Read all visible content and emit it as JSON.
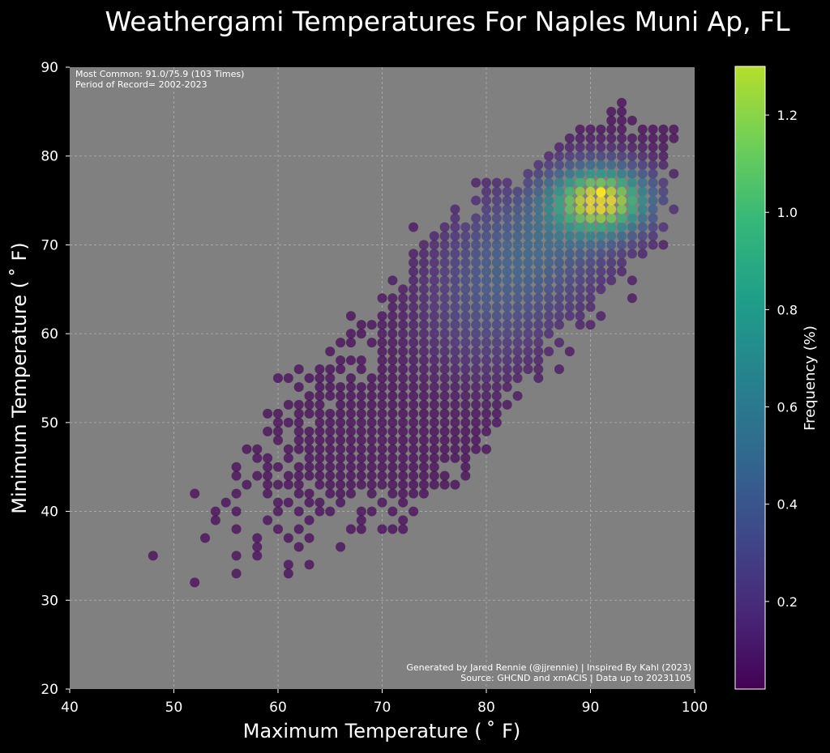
{
  "chart_data": {
    "type": "scatter",
    "title": "Weathergami Temperatures For Naples Muni Ap, FL",
    "xlabel": "Maximum Temperature ($^\\circ$F)",
    "xlabel_display": "Maximum Temperature ( ˚ F)",
    "ylabel_display": "Minimum Temperature ( ˚ F)",
    "xlim": [
      40,
      100
    ],
    "ylim": [
      20,
      90
    ],
    "x_ticks": [
      40,
      50,
      60,
      70,
      80,
      90,
      100
    ],
    "y_ticks": [
      20,
      30,
      40,
      50,
      60,
      70,
      80,
      90
    ],
    "grid": true,
    "plot_background": "#808080",
    "figure_background": "#000000",
    "colormap": "viridis",
    "colorbar": {
      "label": "Frequency (%)",
      "range": [
        0.02,
        1.3
      ],
      "ticks": [
        0.2,
        0.4,
        0.6,
        0.8,
        1.0,
        1.2
      ],
      "tick_labels": [
        "0.2",
        "0.4",
        "0.6",
        "0.8",
        "1.0",
        "1.2"
      ]
    },
    "annotations": {
      "most_common": "Most Common: 91.0/75.9 (103 Times)",
      "period": "Period of Record= 2002-2023",
      "credit": "Generated by Jared Rennie (@jjrennie) | Inspired By Kahl (2023)",
      "source": "Source: GHCND and xmACIS | Data up to 20231105"
    },
    "most_common_point": {
      "x": 91.0,
      "y": 75.9,
      "count": 103
    },
    "density_centers": [
      {
        "x": 91,
        "y": 75,
        "sx": 3.2,
        "sy": 2.6,
        "peak": 1.25
      },
      {
        "x": 85,
        "y": 70,
        "sx": 5.0,
        "sy": 5.0,
        "peak": 0.32
      },
      {
        "x": 80,
        "y": 63,
        "sx": 4.5,
        "sy": 5.5,
        "peak": 0.2
      }
    ],
    "rows": [
      {
        "y": 86,
        "x": [
          93
        ]
      },
      {
        "y": 85,
        "x": [
          92,
          93
        ]
      },
      {
        "y": 84,
        "x": [
          92,
          93,
          94
        ]
      },
      {
        "y": 83,
        "x": [
          89,
          90,
          91,
          92,
          93,
          95,
          96,
          97,
          98
        ]
      },
      {
        "y": 82,
        "x": [
          88,
          89,
          90,
          91,
          92,
          93,
          94,
          95,
          96,
          97,
          98
        ]
      },
      {
        "y": 81,
        "x": [
          87,
          88,
          89,
          90,
          91,
          92,
          93,
          94,
          95,
          96,
          97
        ]
      },
      {
        "y": 80,
        "x": [
          86,
          87,
          88,
          89,
          90,
          91,
          92,
          93,
          94,
          95,
          96,
          97
        ]
      },
      {
        "y": 79,
        "x": [
          85,
          86,
          87,
          88,
          89,
          90,
          91,
          92,
          93,
          94,
          95,
          96,
          97
        ]
      },
      {
        "y": 78,
        "x": [
          84,
          85,
          86,
          87,
          88,
          89,
          90,
          91,
          92,
          93,
          94,
          95,
          96,
          98
        ]
      },
      {
        "y": 77,
        "x": [
          79,
          80,
          81,
          82,
          84,
          85,
          86,
          87,
          88,
          89,
          90,
          91,
          92,
          93,
          94,
          95,
          96,
          97
        ]
      },
      {
        "y": 76,
        "x": [
          80,
          81,
          82,
          83,
          84,
          85,
          86,
          87,
          88,
          89,
          90,
          91,
          92,
          93,
          94,
          95,
          96,
          97
        ]
      },
      {
        "y": 75,
        "x": [
          79,
          80,
          81,
          82,
          83,
          84,
          85,
          86,
          87,
          88,
          89,
          90,
          91,
          92,
          93,
          94,
          95,
          96,
          97
        ]
      },
      {
        "y": 74,
        "x": [
          77,
          80,
          81,
          82,
          83,
          84,
          85,
          86,
          87,
          88,
          89,
          90,
          91,
          92,
          93,
          94,
          95,
          96,
          98
        ]
      },
      {
        "y": 73,
        "x": [
          77,
          79,
          80,
          81,
          82,
          83,
          84,
          85,
          86,
          87,
          88,
          89,
          90,
          91,
          92,
          93,
          94,
          95,
          96
        ]
      },
      {
        "y": 72,
        "x": [
          73,
          76,
          77,
          78,
          79,
          80,
          81,
          82,
          83,
          84,
          85,
          86,
          87,
          88,
          89,
          90,
          91,
          92,
          93,
          94,
          95,
          96,
          97
        ]
      },
      {
        "y": 71,
        "x": [
          75,
          76,
          77,
          78,
          79,
          80,
          81,
          82,
          83,
          84,
          85,
          86,
          87,
          88,
          89,
          90,
          91,
          92,
          93,
          94,
          95,
          96
        ]
      },
      {
        "y": 70,
        "x": [
          74,
          75,
          76,
          77,
          78,
          79,
          80,
          81,
          82,
          83,
          84,
          85,
          86,
          87,
          88,
          89,
          90,
          91,
          92,
          93,
          94,
          95,
          96,
          97
        ]
      },
      {
        "y": 69,
        "x": [
          73,
          74,
          75,
          76,
          77,
          78,
          79,
          80,
          81,
          82,
          83,
          84,
          85,
          86,
          87,
          88,
          89,
          90,
          91,
          92,
          93,
          94,
          95
        ]
      },
      {
        "y": 68,
        "x": [
          73,
          74,
          75,
          76,
          77,
          78,
          79,
          80,
          81,
          82,
          83,
          84,
          85,
          86,
          87,
          88,
          89,
          90,
          91,
          92,
          93
        ]
      },
      {
        "y": 67,
        "x": [
          73,
          74,
          75,
          76,
          77,
          78,
          79,
          80,
          81,
          82,
          83,
          84,
          85,
          86,
          87,
          88,
          89,
          90,
          91,
          92,
          93
        ]
      },
      {
        "y": 66,
        "x": [
          71,
          73,
          74,
          75,
          76,
          77,
          78,
          79,
          80,
          81,
          82,
          83,
          84,
          85,
          86,
          87,
          88,
          89,
          90,
          91,
          92,
          94
        ]
      },
      {
        "y": 65,
        "x": [
          72,
          73,
          74,
          75,
          76,
          77,
          78,
          79,
          80,
          81,
          82,
          83,
          84,
          85,
          86,
          87,
          88,
          89,
          90,
          91
        ]
      },
      {
        "y": 64,
        "x": [
          70,
          71,
          72,
          73,
          74,
          75,
          76,
          77,
          78,
          79,
          80,
          81,
          82,
          83,
          84,
          85,
          86,
          87,
          88,
          89,
          90,
          94
        ]
      },
      {
        "y": 63,
        "x": [
          71,
          72,
          73,
          74,
          75,
          76,
          77,
          78,
          79,
          80,
          81,
          82,
          83,
          84,
          85,
          86,
          87,
          88,
          89,
          90
        ]
      },
      {
        "y": 62,
        "x": [
          67,
          70,
          71,
          72,
          73,
          74,
          75,
          76,
          77,
          78,
          79,
          80,
          81,
          82,
          83,
          84,
          85,
          86,
          87,
          88,
          89,
          91
        ]
      },
      {
        "y": 61,
        "x": [
          68,
          69,
          70,
          71,
          72,
          73,
          74,
          75,
          76,
          77,
          78,
          79,
          80,
          81,
          82,
          83,
          84,
          85,
          86,
          87,
          89,
          90
        ]
      },
      {
        "y": 60,
        "x": [
          67,
          68,
          70,
          71,
          72,
          73,
          74,
          75,
          76,
          77,
          78,
          79,
          80,
          81,
          82,
          83,
          84,
          85,
          86
        ]
      },
      {
        "y": 59,
        "x": [
          66,
          67,
          69,
          70,
          71,
          72,
          73,
          74,
          75,
          76,
          77,
          78,
          79,
          80,
          81,
          82,
          83,
          84,
          85,
          87
        ]
      },
      {
        "y": 58,
        "x": [
          65,
          70,
          71,
          72,
          73,
          74,
          75,
          76,
          77,
          78,
          79,
          80,
          81,
          82,
          83,
          84,
          85,
          86,
          88
        ]
      },
      {
        "y": 57,
        "x": [
          66,
          67,
          68,
          70,
          71,
          72,
          73,
          74,
          75,
          76,
          77,
          78,
          79,
          80,
          81,
          82,
          83,
          84,
          85
        ]
      },
      {
        "y": 56,
        "x": [
          62,
          64,
          65,
          66,
          68,
          70,
          71,
          72,
          73,
          74,
          75,
          76,
          77,
          78,
          79,
          80,
          81,
          82,
          83,
          84,
          85,
          87
        ]
      },
      {
        "y": 55,
        "x": [
          60,
          61,
          63,
          64,
          65,
          67,
          69,
          70,
          71,
          72,
          73,
          74,
          75,
          76,
          77,
          78,
          79,
          80,
          81,
          82,
          83,
          85
        ]
      },
      {
        "y": 54,
        "x": [
          62,
          64,
          65,
          66,
          67,
          68,
          69,
          70,
          71,
          72,
          73,
          74,
          75,
          76,
          77,
          78,
          79,
          80,
          81,
          82
        ]
      },
      {
        "y": 53,
        "x": [
          63,
          64,
          65,
          66,
          67,
          68,
          69,
          70,
          71,
          72,
          73,
          74,
          75,
          76,
          77,
          78,
          79,
          80,
          81,
          83
        ]
      },
      {
        "y": 52,
        "x": [
          61,
          62,
          63,
          64,
          66,
          67,
          68,
          69,
          70,
          71,
          72,
          73,
          74,
          75,
          76,
          77,
          78,
          79,
          80,
          81,
          82
        ]
      },
      {
        "y": 51,
        "x": [
          59,
          60,
          62,
          63,
          64,
          65,
          66,
          67,
          68,
          69,
          70,
          71,
          72,
          73,
          74,
          75,
          76,
          77,
          78,
          79,
          80,
          81
        ]
      },
      {
        "y": 50,
        "x": [
          60,
          61,
          62,
          64,
          65,
          66,
          67,
          68,
          69,
          70,
          71,
          72,
          73,
          74,
          75,
          76,
          77,
          78,
          79,
          80,
          81
        ]
      },
      {
        "y": 49,
        "x": [
          59,
          60,
          62,
          63,
          64,
          65,
          66,
          67,
          68,
          69,
          70,
          71,
          72,
          73,
          74,
          75,
          76,
          77,
          78,
          79,
          80
        ]
      },
      {
        "y": 48,
        "x": [
          60,
          62,
          63,
          64,
          65,
          66,
          67,
          68,
          69,
          70,
          71,
          72,
          73,
          74,
          75,
          76,
          77,
          78,
          79
        ]
      },
      {
        "y": 47,
        "x": [
          57,
          58,
          61,
          62,
          63,
          64,
          65,
          66,
          67,
          68,
          69,
          70,
          71,
          72,
          73,
          74,
          75,
          76,
          77,
          78,
          79,
          80
        ]
      },
      {
        "y": 46,
        "x": [
          58,
          59,
          61,
          63,
          64,
          65,
          66,
          67,
          68,
          69,
          70,
          71,
          72,
          73,
          74,
          75,
          76,
          77,
          78
        ]
      },
      {
        "y": 45,
        "x": [
          56,
          59,
          60,
          62,
          63,
          64,
          65,
          66,
          67,
          68,
          69,
          70,
          71,
          72,
          73,
          74,
          75,
          78
        ]
      },
      {
        "y": 44,
        "x": [
          56,
          58,
          59,
          61,
          62,
          63,
          64,
          65,
          66,
          67,
          68,
          69,
          70,
          71,
          72,
          73,
          74,
          75,
          76,
          78
        ]
      },
      {
        "y": 43,
        "x": [
          57,
          59,
          60,
          61,
          62,
          64,
          65,
          66,
          67,
          68,
          69,
          70,
          71,
          72,
          73,
          74,
          75,
          76,
          77
        ]
      },
      {
        "y": 42,
        "x": [
          52,
          56,
          59,
          62,
          63,
          65,
          66,
          67,
          69,
          71,
          72,
          73,
          74
        ]
      },
      {
        "y": 41,
        "x": [
          55,
          60,
          61,
          63,
          64,
          66,
          70,
          72
        ]
      },
      {
        "y": 40,
        "x": [
          54,
          56,
          60,
          62,
          64,
          65,
          68,
          69,
          71,
          73
        ]
      },
      {
        "y": 39,
        "x": [
          54,
          59,
          63,
          68,
          72
        ]
      },
      {
        "y": 38,
        "x": [
          56,
          60,
          62,
          67,
          68,
          70,
          71,
          72
        ]
      },
      {
        "y": 37,
        "x": [
          53,
          58,
          61,
          63
        ]
      },
      {
        "y": 36,
        "x": [
          58,
          62,
          66
        ]
      },
      {
        "y": 35,
        "x": [
          48,
          56,
          58
        ]
      },
      {
        "y": 34,
        "x": [
          61,
          63
        ]
      },
      {
        "y": 33,
        "x": [
          56,
          61
        ]
      },
      {
        "y": 32,
        "x": [
          52
        ]
      }
    ]
  }
}
